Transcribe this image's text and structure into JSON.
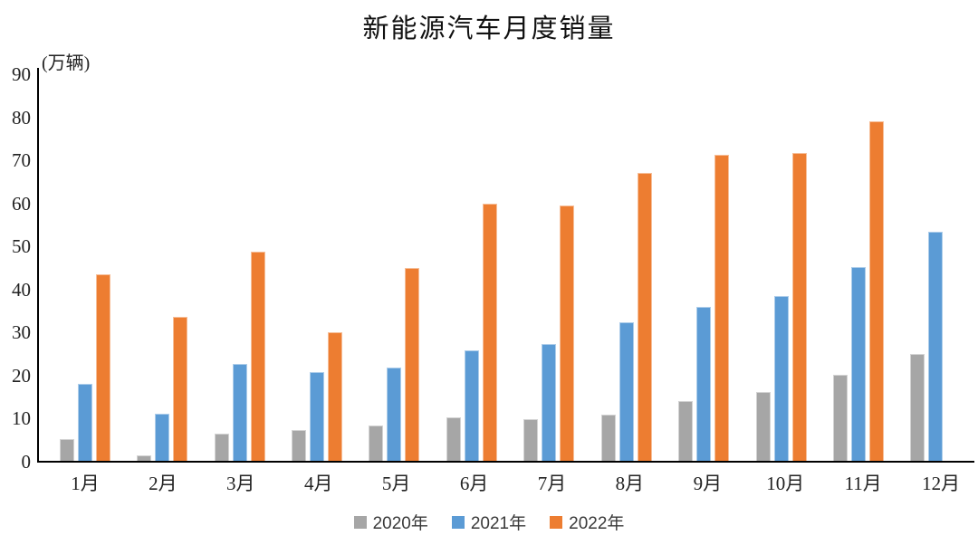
{
  "chart_data": {
    "type": "bar",
    "title": "新能源汽车月度销量",
    "ylabel": "(万辆)",
    "xlabel": "",
    "categories": [
      "1月",
      "2月",
      "3月",
      "4月",
      "5月",
      "6月",
      "7月",
      "8月",
      "9月",
      "10月",
      "11月",
      "12月"
    ],
    "series": [
      {
        "name": "2020年",
        "color": "#A6A6A6",
        "values": [
          5.0,
          1.3,
          6.3,
          7.2,
          8.2,
          10.2,
          9.7,
          10.8,
          13.9,
          16.0,
          20.0,
          24.8
        ]
      },
      {
        "name": "2021年",
        "color": "#5B9BD5",
        "values": [
          17.9,
          11.0,
          22.6,
          20.6,
          21.7,
          25.6,
          27.1,
          32.1,
          35.7,
          38.3,
          45.0,
          53.2
        ]
      },
      {
        "name": "2022年",
        "color": "#ED7D31",
        "values": [
          43.3,
          33.5,
          48.5,
          29.9,
          44.8,
          59.8,
          59.4,
          66.8,
          71.0,
          71.6,
          78.9,
          null
        ]
      }
    ],
    "ylim": [
      0,
      90
    ],
    "yticks": [
      0,
      10,
      20,
      30,
      40,
      50,
      60,
      70,
      80,
      90
    ],
    "grid": false,
    "legend_position": "bottom"
  },
  "colors": {
    "axis": "#000000",
    "tick_text": "#222222",
    "title_text": "#111111",
    "legend_text": "#3a3a3a",
    "background": "#FFFFFF"
  }
}
